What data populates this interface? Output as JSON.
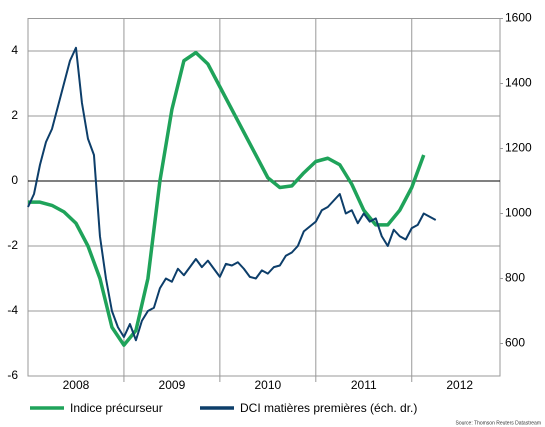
{
  "chart_data": {
    "type": "line",
    "source": "Source: Thomson Reuters Datastream",
    "xlim": [
      2008,
      2012.92
    ],
    "xticks": [
      {
        "value": 2008.5,
        "label": "2008"
      },
      {
        "value": 2009.5,
        "label": "2009"
      },
      {
        "value": 2010.5,
        "label": "2010"
      },
      {
        "value": 2011.5,
        "label": "2011"
      },
      {
        "value": 2012.5,
        "label": "2012"
      }
    ],
    "xgrid": [
      2009,
      2010,
      2011,
      2012
    ],
    "ylim": [
      -6,
      5
    ],
    "yticks": [
      -6,
      -4,
      -2,
      0,
      2,
      4
    ],
    "y2lim": [
      500,
      1600
    ],
    "y2ticks": [
      600,
      800,
      1000,
      1200,
      1400,
      1600
    ],
    "grid": true,
    "legend": "bottom",
    "series": [
      {
        "name": "Indice précurseur",
        "color": "#1fa35a",
        "axis": "y",
        "x": [
          2008,
          2008.125,
          2008.25,
          2008.375,
          2008.5,
          2008.625,
          2008.75,
          2008.875,
          2009,
          2009.125,
          2009.25,
          2009.375,
          2009.5,
          2009.625,
          2009.75,
          2009.875,
          2010,
          2010.125,
          2010.25,
          2010.375,
          2010.5,
          2010.625,
          2010.75,
          2010.875,
          2011,
          2011.125,
          2011.25,
          2011.375,
          2011.5,
          2011.625,
          2011.75,
          2011.875,
          2012,
          2012.125
        ],
        "values": [
          -0.65,
          -0.65,
          -0.75,
          -0.95,
          -1.3,
          -2.0,
          -3.0,
          -4.5,
          -5.05,
          -4.6,
          -3.0,
          0.0,
          2.2,
          3.7,
          3.95,
          3.6,
          2.9,
          2.2,
          1.5,
          0.8,
          0.1,
          -0.2,
          -0.15,
          0.25,
          0.6,
          0.7,
          0.5,
          -0.1,
          -0.9,
          -1.35,
          -1.35,
          -0.9,
          -0.2,
          0.8
        ]
      },
      {
        "name": "DCI matières premières (éch. dr.)",
        "color": "#0d3e6a",
        "axis": "y2",
        "x": [
          2008,
          2008.0625,
          2008.125,
          2008.1875,
          2008.25,
          2008.3125,
          2008.375,
          2008.4375,
          2008.5,
          2008.5625,
          2008.625,
          2008.6875,
          2008.75,
          2008.8125,
          2008.875,
          2008.9375,
          2009,
          2009.0625,
          2009.125,
          2009.1875,
          2009.25,
          2009.3125,
          2009.375,
          2009.4375,
          2009.5,
          2009.5625,
          2009.625,
          2009.6875,
          2009.75,
          2009.8125,
          2009.875,
          2009.9375,
          2010,
          2010.0625,
          2010.125,
          2010.1875,
          2010.25,
          2010.3125,
          2010.375,
          2010.4375,
          2010.5,
          2010.5625,
          2010.625,
          2010.6875,
          2010.75,
          2010.8125,
          2010.875,
          2010.9375,
          2011,
          2011.0625,
          2011.125,
          2011.1875,
          2011.25,
          2011.3125,
          2011.375,
          2011.4375,
          2011.5,
          2011.5625,
          2011.625,
          2011.6875,
          2011.75,
          2011.8125,
          2011.875,
          2011.9375,
          2012,
          2012.0625,
          2012.125,
          2012.1875,
          2012.25
        ],
        "values": [
          1020,
          1060,
          1150,
          1220,
          1260,
          1330,
          1400,
          1470,
          1510,
          1340,
          1230,
          1180,
          930,
          800,
          700,
          650,
          620,
          660,
          610,
          670,
          700,
          710,
          770,
          800,
          790,
          830,
          810,
          835,
          860,
          835,
          855,
          830,
          805,
          845,
          840,
          850,
          830,
          805,
          800,
          825,
          815,
          835,
          840,
          870,
          880,
          900,
          945,
          960,
          975,
          1010,
          1020,
          1040,
          1060,
          1000,
          1010,
          970,
          1000,
          975,
          985,
          930,
          900,
          950,
          930,
          920,
          955,
          965,
          1000,
          990,
          980
        ]
      }
    ]
  }
}
